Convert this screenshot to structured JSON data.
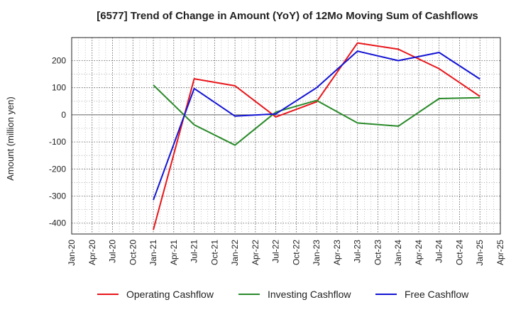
{
  "chart_data": {
    "type": "line",
    "title": "[6577]  Trend of Change in Amount (YoY) of 12Mo Moving Sum of Cashflows",
    "xlabel": "",
    "ylabel": "Amount (million yen)",
    "ylim": [
      -440,
      285
    ],
    "yticks": [
      200,
      100,
      0,
      -100,
      -200,
      -300,
      -400
    ],
    "categories": [
      "Jan-20",
      "Apr-20",
      "Jul-20",
      "Oct-20",
      "Jan-21",
      "Apr-21",
      "Jul-21",
      "Oct-21",
      "Jan-22",
      "Apr-22",
      "Jul-22",
      "Oct-22",
      "Jan-23",
      "Apr-23",
      "Jul-23",
      "Oct-23",
      "Jan-24",
      "Apr-24",
      "Jul-24",
      "Oct-24",
      "Jan-25",
      "Apr-25"
    ],
    "grid": true,
    "legend_position": "bottom",
    "series": [
      {
        "name": "Operating Cashflow",
        "color": "#e8161b",
        "values": [
          null,
          null,
          null,
          null,
          -425,
          null,
          133,
          null,
          107,
          null,
          -8,
          null,
          48,
          null,
          265,
          null,
          242,
          null,
          170,
          null,
          68,
          null
        ]
      },
      {
        "name": "Investing Cashflow",
        "color": "#2a8a2a",
        "values": [
          null,
          null,
          null,
          null,
          110,
          null,
          -37,
          null,
          -112,
          null,
          10,
          null,
          53,
          null,
          -30,
          null,
          -42,
          null,
          60,
          null,
          63,
          null
        ]
      },
      {
        "name": "Free Cashflow",
        "color": "#1414d4",
        "values": [
          null,
          null,
          null,
          null,
          -315,
          null,
          97,
          null,
          -5,
          null,
          3,
          null,
          100,
          null,
          235,
          null,
          200,
          null,
          230,
          null,
          132,
          null
        ]
      }
    ]
  }
}
